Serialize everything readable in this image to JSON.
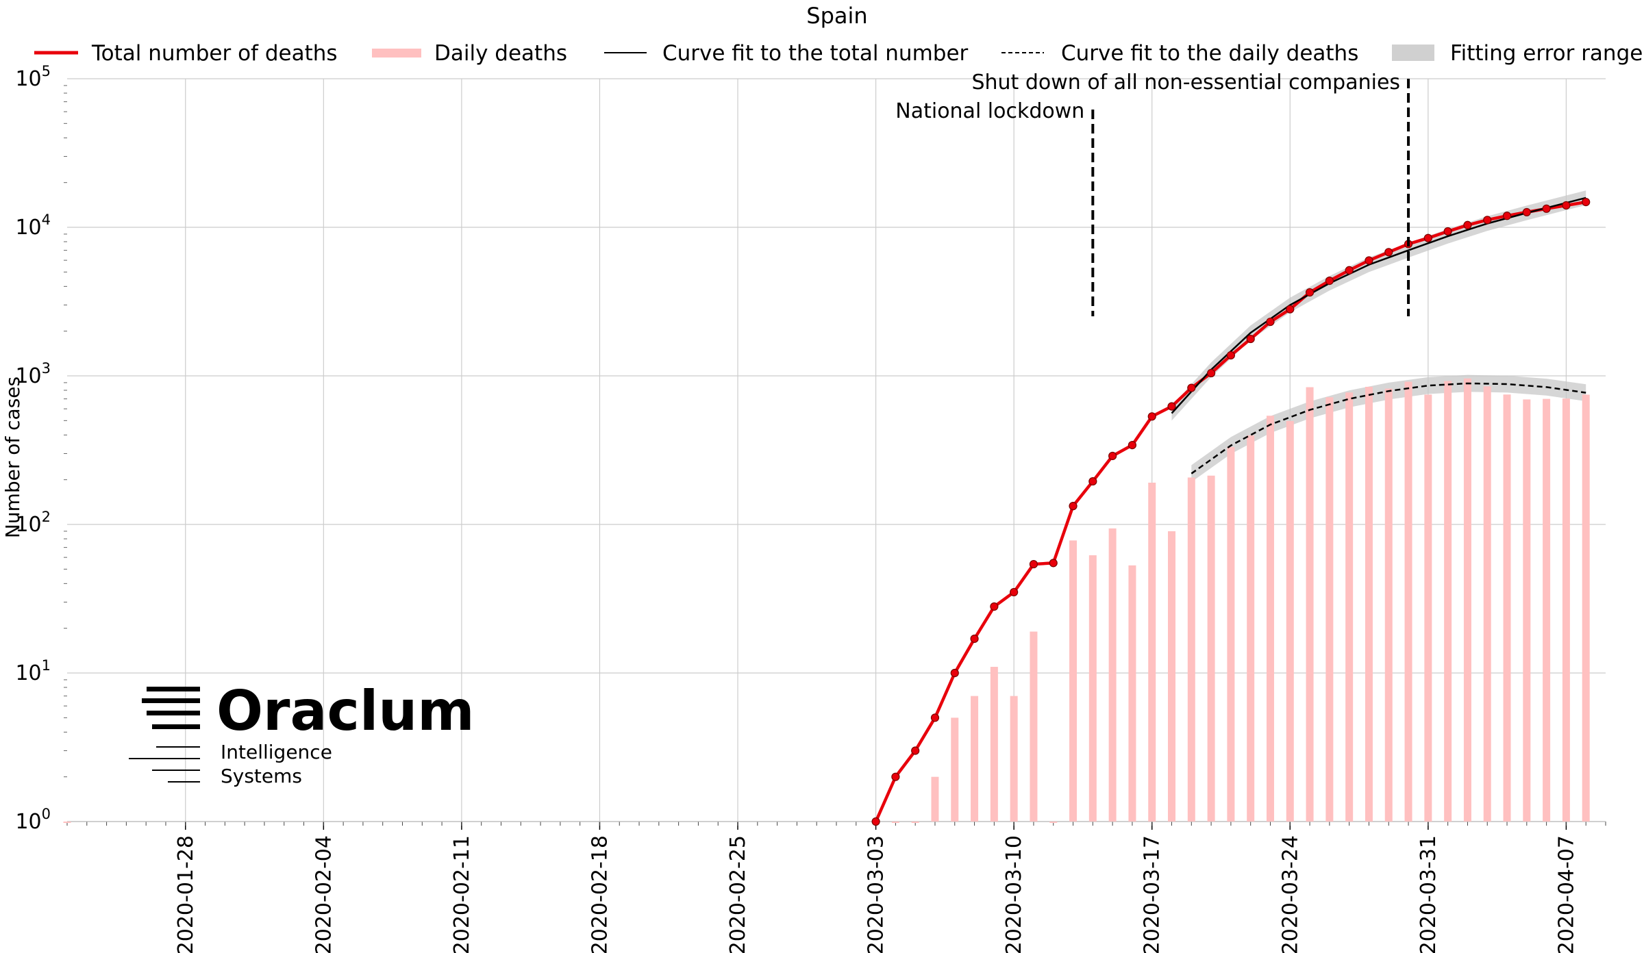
{
  "chart_data": {
    "type": "line",
    "title": "Spain",
    "xlabel": "",
    "ylabel": "Number of cases",
    "yscale": "log",
    "ylim": [
      1,
      100000
    ],
    "xlim": [
      "2020-01-22",
      "2020-04-09"
    ],
    "grid": true,
    "legend_position": "top",
    "x_ticks": [
      "2020-01-28",
      "2020-02-04",
      "2020-02-11",
      "2020-02-18",
      "2020-02-25",
      "2020-03-03",
      "2020-03-10",
      "2020-03-17",
      "2020-03-24",
      "2020-03-31",
      "2020-04-07"
    ],
    "y_ticks": [
      {
        "value": 1,
        "base": "10",
        "exp": "0"
      },
      {
        "value": 10,
        "base": "10",
        "exp": "1"
      },
      {
        "value": 100,
        "base": "10",
        "exp": "2"
      },
      {
        "value": 1000,
        "base": "10",
        "exp": "3"
      },
      {
        "value": 10000,
        "base": "10",
        "exp": "4"
      },
      {
        "value": 100000,
        "base": "10",
        "exp": "5"
      }
    ],
    "legend": [
      {
        "label": "Total number of deaths",
        "style": "red-line"
      },
      {
        "label": "Daily deaths",
        "style": "pink-bar"
      },
      {
        "label": "Curve fit to the total number",
        "style": "black-line"
      },
      {
        "label": "Curve fit to the daily deaths",
        "style": "black-dashed"
      },
      {
        "label": "Fitting error range",
        "style": "grey-band"
      }
    ],
    "series": [
      {
        "name": "Total number of deaths",
        "color": "#e8000b",
        "x": [
          "2020-03-03",
          "2020-03-04",
          "2020-03-05",
          "2020-03-06",
          "2020-03-07",
          "2020-03-08",
          "2020-03-09",
          "2020-03-10",
          "2020-03-11",
          "2020-03-12",
          "2020-03-13",
          "2020-03-14",
          "2020-03-15",
          "2020-03-16",
          "2020-03-17",
          "2020-03-18",
          "2020-03-19",
          "2020-03-20",
          "2020-03-21",
          "2020-03-22",
          "2020-03-23",
          "2020-03-24",
          "2020-03-25",
          "2020-03-26",
          "2020-03-27",
          "2020-03-28",
          "2020-03-29",
          "2020-03-30",
          "2020-03-31",
          "2020-04-01",
          "2020-04-02",
          "2020-04-03",
          "2020-04-04",
          "2020-04-05",
          "2020-04-06",
          "2020-04-07",
          "2020-04-08"
        ],
        "values": [
          1,
          2,
          3,
          5,
          10,
          17,
          28,
          35,
          54,
          55,
          133,
          195,
          289,
          342,
          533,
          623,
          830,
          1043,
          1375,
          1772,
          2311,
          2808,
          3647,
          4365,
          5138,
          5982,
          6803,
          7716,
          8464,
          9387,
          10348,
          11198,
          11947,
          12641,
          13341,
          14045,
          14792
        ]
      },
      {
        "name": "Daily deaths",
        "color": "#ffc0c0",
        "x": [
          "2020-01-22",
          "2020-03-04",
          "2020-03-05",
          "2020-03-06",
          "2020-03-07",
          "2020-03-08",
          "2020-03-09",
          "2020-03-10",
          "2020-03-11",
          "2020-03-12",
          "2020-03-13",
          "2020-03-14",
          "2020-03-15",
          "2020-03-16",
          "2020-03-17",
          "2020-03-18",
          "2020-03-19",
          "2020-03-20",
          "2020-03-21",
          "2020-03-22",
          "2020-03-23",
          "2020-03-24",
          "2020-03-25",
          "2020-03-26",
          "2020-03-27",
          "2020-03-28",
          "2020-03-29",
          "2020-03-30",
          "2020-03-31",
          "2020-04-01",
          "2020-04-02",
          "2020-04-03",
          "2020-04-04",
          "2020-04-05",
          "2020-04-06",
          "2020-04-07",
          "2020-04-08"
        ],
        "values": [
          1,
          1,
          1,
          2,
          5,
          7,
          11,
          7,
          19,
          1,
          78,
          62,
          94,
          53,
          191,
          90,
          207,
          213,
          332,
          397,
          539,
          497,
          839,
          718,
          773,
          844,
          821,
          913,
          748,
          923,
          961,
          850,
          749,
          694,
          700,
          704,
          747
        ]
      },
      {
        "name": "Curve fit to the total number",
        "color": "#000000",
        "x": [
          "2020-03-18",
          "2020-03-20",
          "2020-03-22",
          "2020-03-24",
          "2020-03-26",
          "2020-03-28",
          "2020-03-30",
          "2020-04-01",
          "2020-04-03",
          "2020-04-05",
          "2020-04-08"
        ],
        "values": [
          560,
          1100,
          1950,
          3000,
          4200,
          5600,
          7000,
          8700,
          10600,
          12500,
          15800
        ]
      },
      {
        "name": "Curve fit to the daily deaths",
        "color": "#000000",
        "x": [
          "2020-03-19",
          "2020-03-21",
          "2020-03-23",
          "2020-03-25",
          "2020-03-27",
          "2020-03-29",
          "2020-03-31",
          "2020-04-02",
          "2020-04-04",
          "2020-04-06",
          "2020-04-08"
        ],
        "values": [
          220,
          340,
          470,
          590,
          700,
          790,
          860,
          890,
          880,
          840,
          770
        ]
      }
    ],
    "annotations": [
      {
        "text": "National lockdown",
        "x": "2020-03-14"
      },
      {
        "text": "Shut down of all non-essential companies",
        "x": "2020-03-30"
      }
    ]
  },
  "logo": {
    "name": "Oraclum",
    "tagline_line1": "Intelligence",
    "tagline_line2": "Systems"
  }
}
